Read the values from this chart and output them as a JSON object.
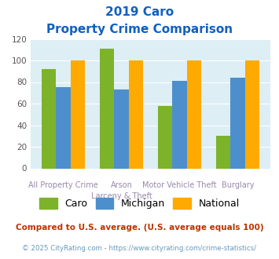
{
  "title_line1": "2019 Caro",
  "title_line2": "Property Crime Comparison",
  "cat_labels_line1": [
    "All Property Crime",
    "Arson",
    "Motor Vehicle Theft",
    "Burglary"
  ],
  "cat_labels_line2": [
    "",
    "Larceny & Theft",
    "",
    ""
  ],
  "caro": [
    92,
    111,
    58,
    30
  ],
  "michigan": [
    75,
    73,
    81,
    84
  ],
  "national": [
    100,
    100,
    100,
    100
  ],
  "caro_color": "#7db32a",
  "michigan_color": "#4d8fcc",
  "national_color": "#ffaa00",
  "bg_color": "#ddeef5",
  "title_color": "#1060c0",
  "label_color": "#9988aa",
  "ylim": [
    0,
    120
  ],
  "yticks": [
    0,
    20,
    40,
    60,
    80,
    100,
    120
  ],
  "footnote1": "Compared to U.S. average. (U.S. average equals 100)",
  "footnote2": "© 2025 CityRating.com - https://www.cityrating.com/crime-statistics/",
  "footnote1_color": "#bb3300",
  "footnote2_color": "#6699bb"
}
